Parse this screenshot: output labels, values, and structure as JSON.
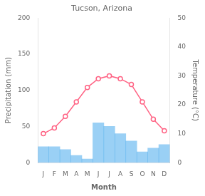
{
  "chart_data": {
    "type": "bar",
    "title": "Tucson, Arizona",
    "xlabel": "Month",
    "ylabel": "Precipitation (mm)",
    "y2label": "Temperature (°C)",
    "categories": [
      "J",
      "F",
      "M",
      "A",
      "M",
      "J",
      "J",
      "A",
      "S",
      "O",
      "N",
      "D"
    ],
    "series": [
      {
        "type": "bar",
        "values": [
          22,
          22,
          18,
          10,
          5,
          55,
          50,
          40,
          30,
          15,
          20,
          25
        ]
      },
      {
        "type": "line",
        "axis": "y2",
        "marker": "circle",
        "line_style": "solid",
        "values": [
          10,
          12,
          16,
          21,
          26,
          29,
          30,
          29,
          27,
          21,
          15,
          11
        ]
      }
    ],
    "ylim": [
      0,
      200
    ],
    "yticks": [
      0,
      50,
      100,
      150,
      200
    ],
    "y2lim": [
      0,
      50
    ],
    "y2ticks": [
      0,
      10,
      20,
      30,
      40,
      50
    ],
    "grid": false
  }
}
